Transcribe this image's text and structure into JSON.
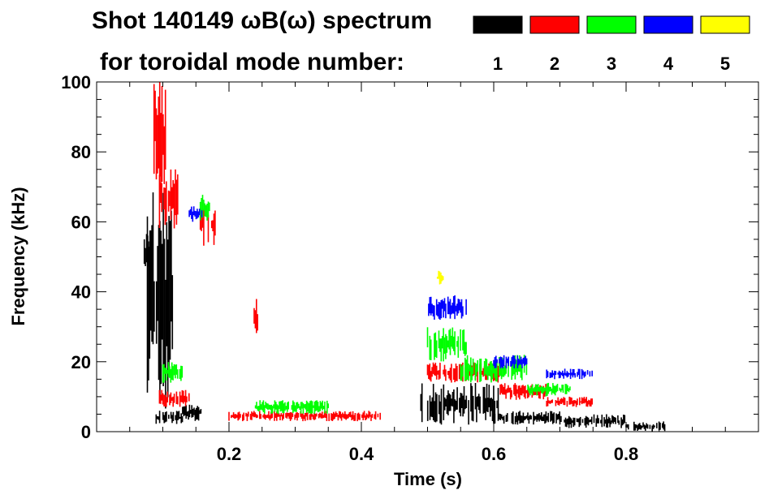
{
  "chart_data": {
    "type": "heatmap",
    "title_line1": "Shot 140149 ωB(ω) spectrum",
    "title_line2": "for toroidal mode number:",
    "xlabel": "Time (s)",
    "ylabel": "Frequency (kHz)",
    "xlim": [
      0.0,
      1.0
    ],
    "ylim": [
      0,
      100
    ],
    "x_ticks": [
      0.2,
      0.4,
      0.6,
      0.8
    ],
    "x_tick_labels": [
      "0.2",
      "0.4",
      "0.6",
      "0.8"
    ],
    "y_ticks": [
      0,
      20,
      40,
      60,
      80,
      100
    ],
    "y_tick_labels": [
      "0",
      "20",
      "40",
      "60",
      "80",
      "100"
    ],
    "legend": [
      {
        "label": "1",
        "color": "#000000"
      },
      {
        "label": "2",
        "color": "#ff0000"
      },
      {
        "label": "3",
        "color": "#00ff00"
      },
      {
        "label": "4",
        "color": "#0000ff"
      },
      {
        "label": "5",
        "color": "#ffff00"
      }
    ],
    "series": [
      {
        "name": "n=1",
        "color": "#000000",
        "blobs": [
          {
            "t": [
              0.075,
              0.115
            ],
            "f": [
              5,
              70
            ]
          },
          {
            "t": [
              0.072,
              0.085
            ],
            "f": [
              45,
              58
            ]
          },
          {
            "t": [
              0.09,
              0.13
            ],
            "f": [
              2,
              6
            ]
          },
          {
            "t": [
              0.13,
              0.16
            ],
            "f": [
              3,
              8
            ]
          },
          {
            "t": [
              0.49,
              0.61
            ],
            "f": [
              2,
              14
            ]
          },
          {
            "t": [
              0.6,
              0.7
            ],
            "f": [
              2,
              6
            ]
          },
          {
            "t": [
              0.7,
              0.8
            ],
            "f": [
              1,
              5
            ]
          },
          {
            "t": [
              0.8,
              0.86
            ],
            "f": [
              0,
              3
            ]
          }
        ]
      },
      {
        "name": "n=2",
        "color": "#ff0000",
        "blobs": [
          {
            "t": [
              0.085,
              0.105
            ],
            "f": [
              70,
              100
            ]
          },
          {
            "t": [
              0.095,
              0.125
            ],
            "f": [
              58,
              75
            ]
          },
          {
            "t": [
              0.155,
              0.18
            ],
            "f": [
              53,
              66
            ]
          },
          {
            "t": [
              0.238,
              0.245
            ],
            "f": [
              28,
              38
            ]
          },
          {
            "t": [
              0.095,
              0.14
            ],
            "f": [
              7,
              12
            ]
          },
          {
            "t": [
              0.2,
              0.43
            ],
            "f": [
              3,
              6
            ]
          },
          {
            "t": [
              0.5,
              0.61
            ],
            "f": [
              14,
              20
            ]
          },
          {
            "t": [
              0.61,
              0.68
            ],
            "f": [
              9,
              14
            ]
          },
          {
            "t": [
              0.68,
              0.75
            ],
            "f": [
              7,
              10
            ]
          }
        ]
      },
      {
        "name": "n=3",
        "color": "#00ff00",
        "blobs": [
          {
            "t": [
              0.155,
              0.175
            ],
            "f": [
              60,
              68
            ]
          },
          {
            "t": [
              0.1,
              0.13
            ],
            "f": [
              14,
              20
            ]
          },
          {
            "t": [
              0.24,
              0.35
            ],
            "f": [
              5,
              9
            ]
          },
          {
            "t": [
              0.5,
              0.56
            ],
            "f": [
              20,
              30
            ]
          },
          {
            "t": [
              0.55,
              0.65
            ],
            "f": [
              14,
              22
            ]
          },
          {
            "t": [
              0.65,
              0.72
            ],
            "f": [
              10,
              14
            ]
          }
        ]
      },
      {
        "name": "n=4",
        "color": "#0000ff",
        "blobs": [
          {
            "t": [
              0.14,
              0.16
            ],
            "f": [
              60,
              65
            ]
          },
          {
            "t": [
              0.5,
              0.56
            ],
            "f": [
              32,
              39
            ]
          },
          {
            "t": [
              0.6,
              0.65
            ],
            "f": [
              18,
              22
            ]
          },
          {
            "t": [
              0.68,
              0.75
            ],
            "f": [
              15,
              18
            ]
          }
        ]
      },
      {
        "name": "n=5",
        "color": "#ffff00",
        "blobs": [
          {
            "t": [
              0.515,
              0.53
            ],
            "f": [
              42,
              46
            ]
          }
        ]
      }
    ]
  }
}
